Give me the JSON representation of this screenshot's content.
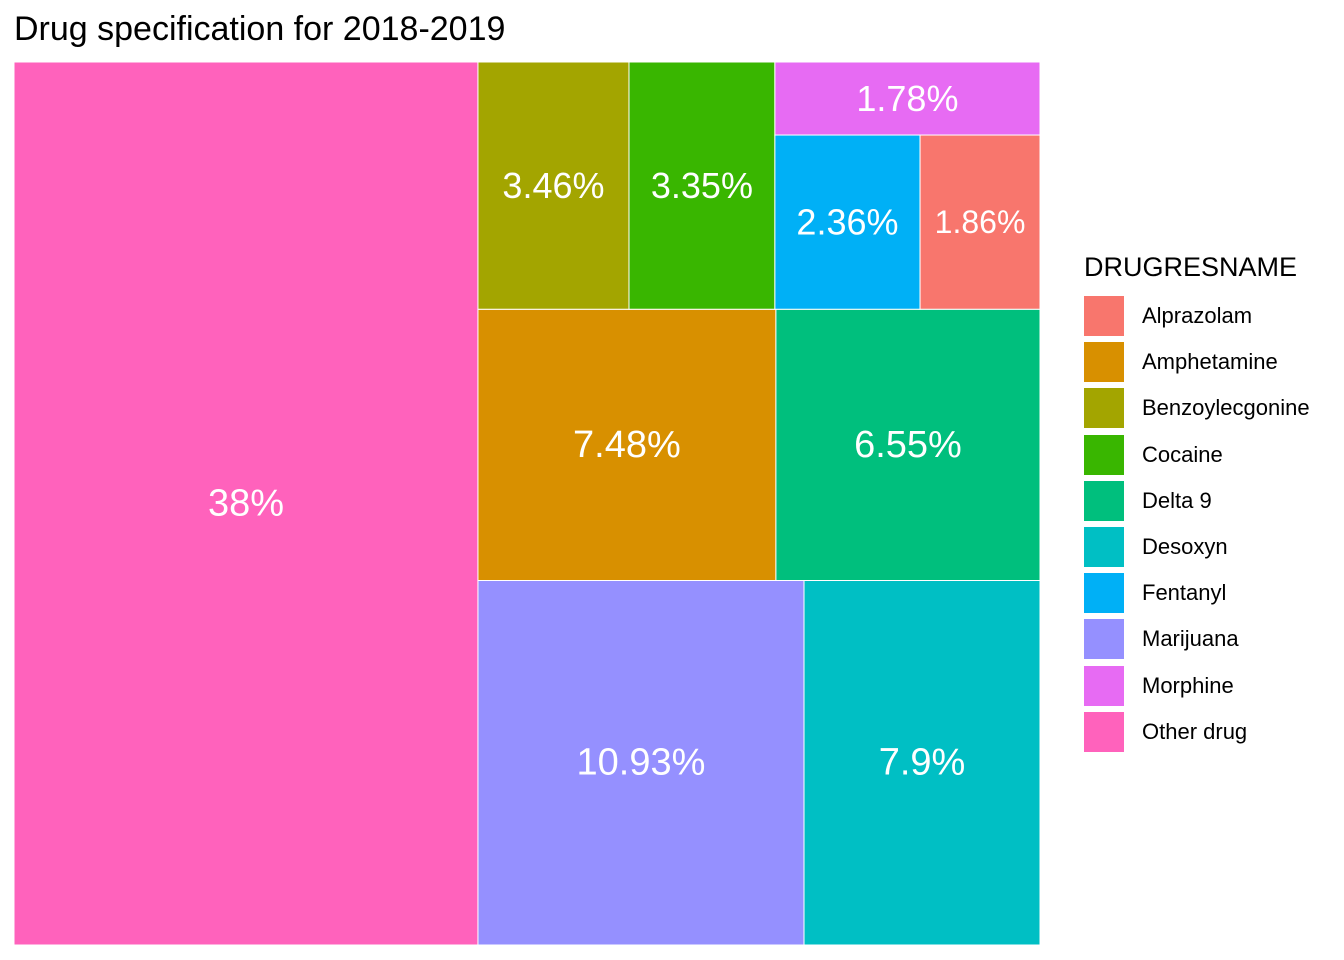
{
  "chart_data": {
    "type": "treemap",
    "title": "Drug specification for 2018-2019",
    "legend": {
      "title": "DRUGRESNAME",
      "placement": "right",
      "items": [
        {
          "name": "Alprazolam",
          "color": "#F8766D"
        },
        {
          "name": "Amphetamine",
          "color": "#D89000"
        },
        {
          "name": "Benzoylecgonine",
          "color": "#A3A500"
        },
        {
          "name": "Cocaine",
          "color": "#39B600"
        },
        {
          "name": "Delta 9",
          "color": "#00BF7D"
        },
        {
          "name": "Desoxyn",
          "color": "#00BFC4"
        },
        {
          "name": "Fentanyl",
          "color": "#00B0F6"
        },
        {
          "name": "Marijuana",
          "color": "#9590FF"
        },
        {
          "name": "Morphine",
          "color": "#E76BF3"
        },
        {
          "name": "Other drug",
          "color": "#FF62BC"
        }
      ]
    },
    "tiles": [
      {
        "name": "Other drug",
        "value": 38,
        "label": "38%"
      },
      {
        "name": "Marijuana",
        "value": 10.93,
        "label": "10.93%"
      },
      {
        "name": "Desoxyn",
        "value": 7.9,
        "label": "7.9%"
      },
      {
        "name": "Amphetamine",
        "value": 7.48,
        "label": "7.48%"
      },
      {
        "name": "Delta 9",
        "value": 6.55,
        "label": "6.55%"
      },
      {
        "name": "Benzoylecgonine",
        "value": 3.46,
        "label": "3.46%"
      },
      {
        "name": "Cocaine",
        "value": 3.35,
        "label": "3.35%"
      },
      {
        "name": "Fentanyl",
        "value": 2.36,
        "label": "2.36%"
      },
      {
        "name": "Alprazolam",
        "value": 1.86,
        "label": "1.86%"
      },
      {
        "name": "Morphine",
        "value": 1.78,
        "label": "1.78%"
      }
    ]
  }
}
